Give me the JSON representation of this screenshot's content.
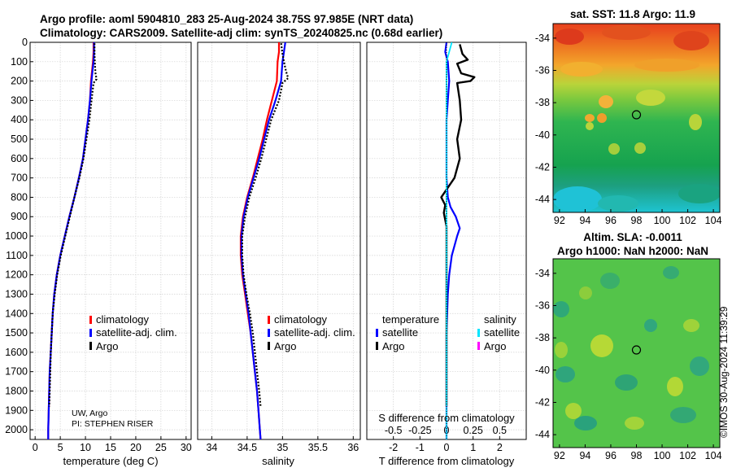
{
  "title": {
    "line1": "Argo profile: aoml 5904810_283 25-Aug-2024 38.75S 97.985E (NRT data)",
    "line2": "Climatology: CARS2009. Satellite-adj clim: synTS_20240825.nc (0.68d earlier)"
  },
  "credits": {
    "institution": "UW, Argo",
    "pi": "PI: STEPHEN RISER"
  },
  "watermark": "©IMOS 30-Aug-2024 11:39:29",
  "colors": {
    "climatology": "#ff0000",
    "satellite": "#0000ff",
    "argo": "#000000",
    "sat_salinity": "#00e5ff",
    "argo_salinity": "#ff00ff"
  },
  "depth_ticks": [
    "0",
    "100",
    "200",
    "300",
    "400",
    "500",
    "600",
    "700",
    "800",
    "900",
    "1000",
    "1100",
    "1200",
    "1300",
    "1400",
    "1500",
    "1600",
    "1700",
    "1800",
    "1900",
    "2000"
  ],
  "chart_data": [
    {
      "type": "line",
      "id": "temperature",
      "xlabel": "temperature (deg C)",
      "ylabel": "depth",
      "xlim": [
        -1,
        31
      ],
      "ylim": [
        0,
        2050
      ],
      "xticks": [
        "0",
        "5",
        "10",
        "15",
        "20",
        "25",
        "30"
      ],
      "legend": [
        "climatology",
        "satellite-adj. clim.",
        "Argo"
      ],
      "series": [
        {
          "name": "climatology",
          "points": [
            [
              11.6,
              0
            ],
            [
              11.6,
              50
            ],
            [
              11.5,
              100
            ],
            [
              11.3,
              150
            ],
            [
              11.1,
              200
            ],
            [
              10.9,
              300
            ],
            [
              10.5,
              400
            ],
            [
              10.0,
              500
            ],
            [
              9.5,
              600
            ],
            [
              8.7,
              700
            ],
            [
              7.8,
              800
            ],
            [
              6.8,
              900
            ],
            [
              5.9,
              1000
            ],
            [
              5.0,
              1100
            ],
            [
              4.3,
              1200
            ],
            [
              3.8,
              1300
            ],
            [
              3.5,
              1400
            ],
            [
              3.3,
              1500
            ],
            [
              3.1,
              1600
            ],
            [
              2.9,
              1700
            ],
            [
              2.8,
              1800
            ],
            [
              2.7,
              1900
            ],
            [
              2.6,
              2000
            ],
            [
              2.6,
              2050
            ]
          ]
        },
        {
          "name": "satellite-adj. clim.",
          "points": [
            [
              11.7,
              0
            ],
            [
              11.7,
              50
            ],
            [
              11.6,
              100
            ],
            [
              11.4,
              150
            ],
            [
              11.2,
              200
            ],
            [
              10.9,
              300
            ],
            [
              10.5,
              400
            ],
            [
              10.0,
              500
            ],
            [
              9.5,
              600
            ],
            [
              8.7,
              700
            ],
            [
              7.8,
              800
            ],
            [
              6.8,
              900
            ],
            [
              5.9,
              1000
            ],
            [
              5.0,
              1100
            ],
            [
              4.3,
              1200
            ],
            [
              3.8,
              1300
            ],
            [
              3.5,
              1400
            ],
            [
              3.3,
              1500
            ],
            [
              3.1,
              1600
            ],
            [
              2.9,
              1700
            ],
            [
              2.8,
              1800
            ],
            [
              2.7,
              1900
            ],
            [
              2.6,
              2000
            ],
            [
              2.6,
              2050
            ]
          ]
        },
        {
          "name": "Argo",
          "points": [
            [
              11.8,
              5
            ],
            [
              11.8,
              60
            ],
            [
              11.9,
              120
            ],
            [
              12.0,
              160
            ],
            [
              12.2,
              190
            ],
            [
              11.6,
              210
            ],
            [
              11.2,
              300
            ],
            [
              10.8,
              400
            ],
            [
              10.2,
              500
            ],
            [
              9.6,
              600
            ],
            [
              8.8,
              700
            ],
            [
              7.8,
              800
            ],
            [
              6.9,
              900
            ],
            [
              6.0,
              1000
            ],
            [
              5.1,
              1100
            ],
            [
              4.4,
              1200
            ],
            [
              3.9,
              1300
            ],
            [
              3.5,
              1400
            ],
            [
              3.3,
              1500
            ],
            [
              3.1,
              1600
            ],
            [
              3.0,
              1700
            ],
            [
              2.9,
              1800
            ],
            [
              2.8,
              1880
            ]
          ]
        }
      ]
    },
    {
      "type": "line",
      "id": "salinity",
      "xlabel": "salinity",
      "ylabel": "depth",
      "xlim": [
        33.8,
        36.1
      ],
      "ylim": [
        0,
        2050
      ],
      "xticks": [
        "34",
        "34.5",
        "35",
        "35.5",
        "36"
      ],
      "legend": [
        "climatology",
        "satellite-adj. clim.",
        "Argo"
      ],
      "series": [
        {
          "name": "climatology",
          "points": [
            [
              34.95,
              0
            ],
            [
              34.95,
              50
            ],
            [
              34.93,
              100
            ],
            [
              34.92,
              200
            ],
            [
              34.85,
              300
            ],
            [
              34.78,
              400
            ],
            [
              34.72,
              500
            ],
            [
              34.65,
              600
            ],
            [
              34.58,
              700
            ],
            [
              34.5,
              800
            ],
            [
              34.44,
              900
            ],
            [
              34.41,
              1000
            ],
            [
              34.41,
              1100
            ],
            [
              34.43,
              1200
            ],
            [
              34.47,
              1300
            ],
            [
              34.51,
              1400
            ],
            [
              34.55,
              1500
            ],
            [
              34.58,
              1600
            ],
            [
              34.61,
              1700
            ],
            [
              34.64,
              1800
            ],
            [
              34.66,
              1900
            ],
            [
              34.68,
              2000
            ],
            [
              34.69,
              2050
            ]
          ]
        },
        {
          "name": "satellite-adj. clim.",
          "points": [
            [
              35.04,
              0
            ],
            [
              35.02,
              50
            ],
            [
              35.0,
              100
            ],
            [
              34.98,
              200
            ],
            [
              34.9,
              300
            ],
            [
              34.81,
              400
            ],
            [
              34.74,
              500
            ],
            [
              34.67,
              600
            ],
            [
              34.59,
              700
            ],
            [
              34.51,
              800
            ],
            [
              34.45,
              900
            ],
            [
              34.42,
              1000
            ],
            [
              34.42,
              1100
            ],
            [
              34.44,
              1200
            ],
            [
              34.48,
              1300
            ],
            [
              34.52,
              1400
            ],
            [
              34.55,
              1500
            ],
            [
              34.58,
              1600
            ],
            [
              34.61,
              1700
            ],
            [
              34.64,
              1800
            ],
            [
              34.66,
              1900
            ],
            [
              34.68,
              2000
            ],
            [
              34.69,
              2050
            ]
          ]
        },
        {
          "name": "Argo",
          "points": [
            [
              34.98,
              5
            ],
            [
              35.0,
              60
            ],
            [
              35.02,
              100
            ],
            [
              35.05,
              150
            ],
            [
              35.08,
              185
            ],
            [
              35.0,
              210
            ],
            [
              34.95,
              300
            ],
            [
              34.84,
              400
            ],
            [
              34.77,
              500
            ],
            [
              34.7,
              600
            ],
            [
              34.62,
              700
            ],
            [
              34.53,
              800
            ],
            [
              34.47,
              900
            ],
            [
              34.43,
              1000
            ],
            [
              34.43,
              1100
            ],
            [
              34.45,
              1200
            ],
            [
              34.49,
              1300
            ],
            [
              34.54,
              1400
            ],
            [
              34.58,
              1500
            ],
            [
              34.61,
              1600
            ],
            [
              34.64,
              1700
            ],
            [
              34.67,
              1800
            ],
            [
              34.69,
              1880
            ]
          ]
        }
      ]
    },
    {
      "type": "line",
      "id": "difference",
      "xlabel": "T difference from climatology",
      "xlabel2": "S difference from climatology",
      "ylabel": "depth",
      "xlim": [
        -3,
        3
      ],
      "ylim": [
        0,
        2050
      ],
      "xticks": [
        "-2",
        "-1",
        "0",
        "1",
        "2"
      ],
      "xticks2": [
        "-0.5",
        "-0.25",
        "0",
        "0.25",
        "0.5"
      ],
      "legend_headers": [
        "temperature",
        "salinity"
      ],
      "legend": [
        "satellite",
        "Argo",
        "satellite",
        "Argo"
      ],
      "series": [
        {
          "name": "T satellite",
          "points": [
            [
              0.0,
              0
            ],
            [
              -0.05,
              50
            ],
            [
              0.05,
              100
            ],
            [
              0.1,
              200
            ],
            [
              0.05,
              300
            ],
            [
              0.0,
              400
            ],
            [
              0.0,
              500
            ],
            [
              0.0,
              600
            ],
            [
              0.0,
              700
            ],
            [
              0.05,
              800
            ],
            [
              0.15,
              850
            ],
            [
              0.35,
              900
            ],
            [
              0.5,
              960
            ],
            [
              0.4,
              1000
            ],
            [
              0.2,
              1100
            ],
            [
              0.1,
              1200
            ],
            [
              0.05,
              1300
            ],
            [
              0.0,
              1500
            ],
            [
              0.0,
              2050
            ]
          ]
        },
        {
          "name": "T Argo",
          "points": [
            [
              0.5,
              10
            ],
            [
              0.6,
              60
            ],
            [
              0.8,
              90
            ],
            [
              0.4,
              110
            ],
            [
              0.55,
              160
            ],
            [
              1.05,
              180
            ],
            [
              0.9,
              200
            ],
            [
              0.4,
              210
            ],
            [
              0.5,
              300
            ],
            [
              0.55,
              400
            ],
            [
              0.4,
              500
            ],
            [
              0.5,
              600
            ],
            [
              0.3,
              700
            ],
            [
              0.0,
              760
            ],
            [
              -0.2,
              800
            ],
            [
              -0.05,
              840
            ],
            [
              -0.1,
              880
            ],
            [
              0.0,
              950
            ],
            [
              0.0,
              1000
            ],
            [
              0.0,
              1880
            ]
          ]
        },
        {
          "name": "S satellite",
          "points": [
            [
              0.05,
              0
            ],
            [
              0.0,
              100
            ],
            [
              0.0,
              300
            ],
            [
              0.0,
              600
            ],
            [
              0.0,
              1000
            ],
            [
              0.0,
              1500
            ],
            [
              0.0,
              2050
            ]
          ]
        },
        {
          "name": "S Argo",
          "points": [
            [
              0.0,
              1880
            ]
          ]
        }
      ]
    },
    {
      "type": "heatmap",
      "id": "sst_map",
      "title": "sat. SST: 11.8 Argo: 11.9",
      "xlim": [
        91.5,
        104.5
      ],
      "ylim": [
        -44.8,
        -33.1
      ],
      "xticks": [
        "92",
        "94",
        "96",
        "98",
        "100",
        "102",
        "104"
      ],
      "yticks": [
        "-34",
        "-36",
        "-38",
        "-40",
        "-42",
        "-44"
      ],
      "marker": [
        98.0,
        -38.75
      ]
    },
    {
      "type": "heatmap",
      "id": "sla_map",
      "title": "Altim. SLA: -0.0011",
      "subtitle": "Argo h1000: NaN h2000: NaN",
      "xlim": [
        91.5,
        104.5
      ],
      "ylim": [
        -44.8,
        -33.1
      ],
      "xticks": [
        "92",
        "94",
        "96",
        "98",
        "100",
        "102",
        "104"
      ],
      "yticks": [
        "-34",
        "-36",
        "-38",
        "-40",
        "-42",
        "-44"
      ],
      "marker": [
        98.0,
        -38.75
      ]
    }
  ]
}
